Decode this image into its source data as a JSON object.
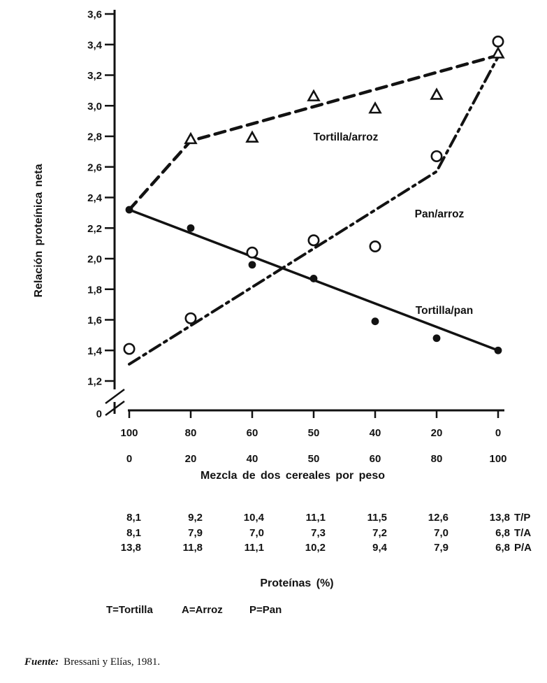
{
  "figure": {
    "legend_items": [
      "T=Tortilla",
      "A=Arroz",
      "P=Pan"
    ],
    "source": {
      "prefix": "Fuente:",
      "text": "Bressani y Elías, 1981."
    }
  },
  "chart_data": {
    "type": "line",
    "title": "",
    "ylabel": "Relación proteínica neta",
    "xlabel": "Mezcla de dos cereales por peso",
    "ylim": [
      1.2,
      3.6
    ],
    "y_axis_break": true,
    "y_axis_zero_label": "0",
    "y_tick_labels": [
      "3,6",
      "3,4",
      "3,2",
      "3,0",
      "2,8",
      "2,6",
      "2,4",
      "2,2",
      "2,0",
      "1,8",
      "1,6",
      "1,4",
      "1,2"
    ],
    "categories": [
      "100/0",
      "80/20",
      "60/40",
      "50/50",
      "40/60",
      "20/80",
      "0/100"
    ],
    "x_tick_labels_row1": [
      "100",
      "80",
      "60",
      "50",
      "40",
      "20",
      "0"
    ],
    "x_tick_labels_row2": [
      "0",
      "20",
      "40",
      "50",
      "60",
      "80",
      "100"
    ],
    "grid": false,
    "legend_position": "inline-labels",
    "series": [
      {
        "name": "Tortilla/arroz",
        "marker": "open-triangle",
        "line_style": "dashed",
        "values": [
          2.32,
          2.78,
          2.79,
          3.06,
          2.98,
          3.07,
          3.34
        ],
        "marker_skip": [
          0
        ],
        "trend": [
          [
            0,
            2.32
          ],
          [
            1,
            2.77
          ],
          [
            6,
            3.33
          ]
        ]
      },
      {
        "name": "Pan/arroz",
        "marker": "open-circle",
        "line_style": "dash-dot",
        "values": [
          1.41,
          1.61,
          2.04,
          2.12,
          2.08,
          2.67,
          3.42
        ],
        "marker_skip": [],
        "trend": [
          [
            0,
            1.31
          ],
          [
            5,
            2.57
          ],
          [
            6,
            3.32
          ]
        ]
      },
      {
        "name": "Tortilla/pan",
        "marker": "filled-circle",
        "line_style": "solid",
        "values": [
          2.32,
          2.2,
          1.96,
          1.87,
          1.59,
          1.48,
          1.4
        ],
        "marker_skip": [],
        "trend": [
          [
            0,
            2.32
          ],
          [
            6,
            1.4
          ]
        ]
      }
    ],
    "protein_table": {
      "title": "Proteínas (%)",
      "row_labels": [
        "T/P",
        "T/A",
        "P/A"
      ],
      "rows": [
        [
          "8,1",
          "9,2",
          "10,4",
          "11,1",
          "11,5",
          "12,6",
          "13,8"
        ],
        [
          "8,1",
          "7,9",
          "7,0",
          "7,3",
          "7,2",
          "7,0",
          "6,8"
        ],
        [
          "13,8",
          "11,8",
          "11,1",
          "10,2",
          "9,4",
          "7,9",
          "6,8"
        ]
      ]
    }
  }
}
